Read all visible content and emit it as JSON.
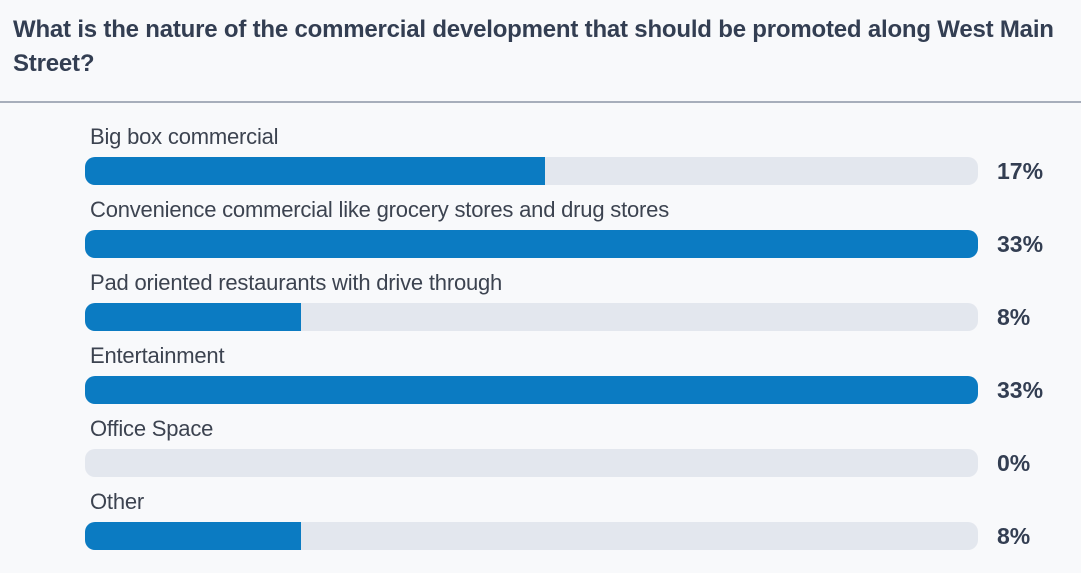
{
  "question": {
    "title": "What is the nature of the commercial development that should be promoted along West Main Street?"
  },
  "chart_data": {
    "type": "bar",
    "orientation": "horizontal",
    "title": "What is the nature of the commercial development that should be promoted along West Main Street?",
    "categories": [
      "Big box commercial",
      "Convenience commercial like grocery stores and drug stores",
      "Pad oriented restaurants with drive through",
      "Entertainment",
      "Office Space",
      "Other"
    ],
    "values": [
      17,
      33,
      8,
      33,
      0,
      8
    ],
    "value_unit": "%",
    "axis_max_percent": 33,
    "legend": "none",
    "grid": "off",
    "items": [
      {
        "label": "Big box commercial",
        "percent": 17,
        "percent_label": "17%"
      },
      {
        "label": "Convenience commercial like grocery stores and drug stores",
        "percent": 33,
        "percent_label": "33%"
      },
      {
        "label": "Pad oriented restaurants with drive through",
        "percent": 8,
        "percent_label": "8%"
      },
      {
        "label": "Entertainment",
        "percent": 33,
        "percent_label": "33%"
      },
      {
        "label": "Office Space",
        "percent": 0,
        "percent_label": "0%"
      },
      {
        "label": "Other",
        "percent": 8,
        "percent_label": "8%"
      }
    ],
    "colors": {
      "bar_fill": "#0b7bc2",
      "bar_track": "#e3e7ee",
      "title_text": "#333e52",
      "label_text": "#3c4350",
      "value_text": "#333e52",
      "divider": "#a7aebb",
      "background": "#f8f9fb"
    }
  }
}
